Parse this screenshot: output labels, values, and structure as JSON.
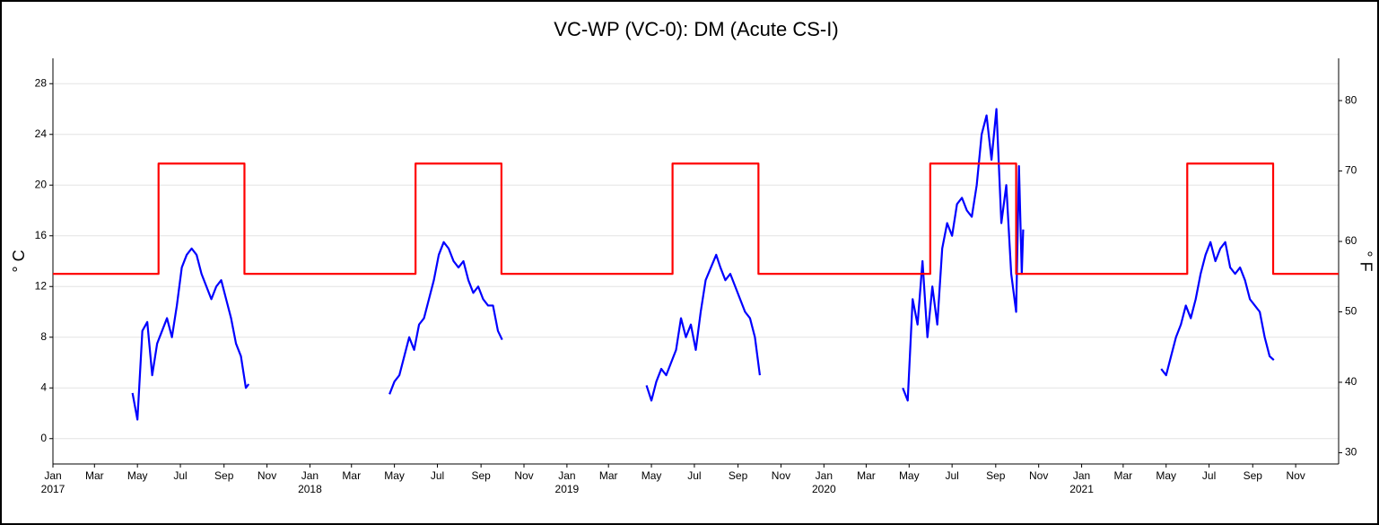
{
  "chart_data": {
    "type": "line",
    "title": "VC-WP (VC-0): DM (Acute CS-I)",
    "ylabel": "° C",
    "y2label": "° F",
    "xlim": [
      "2017-01-01",
      "2022-01-01"
    ],
    "ylim": [
      -2,
      30
    ],
    "yticks": [
      0,
      4,
      8,
      12,
      16,
      20,
      24,
      28
    ],
    "y2lim": [
      28.4,
      86
    ],
    "y2ticks": [
      30,
      40,
      50,
      60,
      70,
      80
    ],
    "grid": true,
    "xticks": [
      {
        "value": "2017-01-01",
        "label": "Jan"
      },
      {
        "value": "2017-03-01",
        "label": "Mar"
      },
      {
        "value": "2017-05-01",
        "label": "May"
      },
      {
        "value": "2017-07-01",
        "label": "Jul"
      },
      {
        "value": "2017-09-01",
        "label": "Sep"
      },
      {
        "value": "2017-11-01",
        "label": "Nov"
      },
      {
        "value": "2018-01-01",
        "label": "Jan"
      },
      {
        "value": "2018-03-01",
        "label": "Mar"
      },
      {
        "value": "2018-05-01",
        "label": "May"
      },
      {
        "value": "2018-07-01",
        "label": "Jul"
      },
      {
        "value": "2018-09-01",
        "label": "Sep"
      },
      {
        "value": "2018-11-01",
        "label": "Nov"
      },
      {
        "value": "2019-01-01",
        "label": "Jan"
      },
      {
        "value": "2019-03-01",
        "label": "Mar"
      },
      {
        "value": "2019-05-01",
        "label": "May"
      },
      {
        "value": "2019-07-01",
        "label": "Jul"
      },
      {
        "value": "2019-09-01",
        "label": "Sep"
      },
      {
        "value": "2019-11-01",
        "label": "Nov"
      },
      {
        "value": "2020-01-01",
        "label": "Jan"
      },
      {
        "value": "2020-03-01",
        "label": "Mar"
      },
      {
        "value": "2020-05-01",
        "label": "May"
      },
      {
        "value": "2020-07-01",
        "label": "Jul"
      },
      {
        "value": "2020-09-01",
        "label": "Sep"
      },
      {
        "value": "2020-11-01",
        "label": "Nov"
      },
      {
        "value": "2021-01-01",
        "label": "Jan"
      },
      {
        "value": "2021-03-01",
        "label": "Mar"
      },
      {
        "value": "2021-05-01",
        "label": "May"
      },
      {
        "value": "2021-07-01",
        "label": "Jul"
      },
      {
        "value": "2021-09-01",
        "label": "Sep"
      },
      {
        "value": "2021-11-01",
        "label": "Nov"
      }
    ],
    "year_labels": [
      {
        "value": "2017-01-01",
        "label": "2017"
      },
      {
        "value": "2018-01-01",
        "label": "2018"
      },
      {
        "value": "2019-01-01",
        "label": "2019"
      },
      {
        "value": "2020-01-01",
        "label": "2020"
      },
      {
        "value": "2021-01-01",
        "label": "2021"
      }
    ],
    "series": [
      {
        "color": "#0000ff",
        "x": [
          "2017-04-24",
          "2017-05-01",
          "2017-05-08",
          "2017-05-15",
          "2017-05-22",
          "2017-05-29",
          "2017-06-05",
          "2017-06-12",
          "2017-06-19",
          "2017-06-26",
          "2017-07-03",
          "2017-07-10",
          "2017-07-17",
          "2017-07-24",
          "2017-07-31",
          "2017-08-07",
          "2017-08-14",
          "2017-08-21",
          "2017-08-28",
          "2017-09-04",
          "2017-09-11",
          "2017-09-18",
          "2017-09-25",
          "2017-10-02",
          "2017-10-06",
          "2018-01-01",
          "2018-04-24",
          "2018-05-01",
          "2018-05-08",
          "2018-05-15",
          "2018-05-22",
          "2018-05-29",
          "2018-06-05",
          "2018-06-12",
          "2018-06-19",
          "2018-06-26",
          "2018-07-03",
          "2018-07-10",
          "2018-07-17",
          "2018-07-24",
          "2018-07-31",
          "2018-08-07",
          "2018-08-14",
          "2018-08-21",
          "2018-08-28",
          "2018-09-04",
          "2018-09-11",
          "2018-09-18",
          "2018-09-25",
          "2018-10-01",
          "2019-01-01",
          "2019-04-24",
          "2019-05-01",
          "2019-05-08",
          "2019-05-15",
          "2019-05-22",
          "2019-05-29",
          "2019-06-05",
          "2019-06-12",
          "2019-06-19",
          "2019-06-26",
          "2019-07-03",
          "2019-07-10",
          "2019-07-17",
          "2019-08-01",
          "2019-08-07",
          "2019-08-14",
          "2019-08-21",
          "2019-08-28",
          "2019-09-04",
          "2019-09-11",
          "2019-09-18",
          "2019-09-25",
          "2019-10-02",
          "2020-01-01",
          "2020-04-22",
          "2020-04-29",
          "2020-05-06",
          "2020-05-13",
          "2020-05-20",
          "2020-05-27",
          "2020-06-03",
          "2020-06-10",
          "2020-06-17",
          "2020-06-24",
          "2020-07-01",
          "2020-07-08",
          "2020-07-15",
          "2020-07-22",
          "2020-07-29",
          "2020-08-05",
          "2020-08-12",
          "2020-08-19",
          "2020-08-26",
          "2020-09-02",
          "2020-09-09",
          "2020-09-16",
          "2020-09-23",
          "2020-09-30",
          "2020-10-04",
          "2020-10-08",
          "2020-10-10",
          "2021-01-01",
          "2021-04-24",
          "2021-05-01",
          "2021-05-08",
          "2021-05-15",
          "2021-05-22",
          "2021-05-29",
          "2021-06-05",
          "2021-06-12",
          "2021-06-19",
          "2021-06-26",
          "2021-07-03",
          "2021-07-10",
          "2021-07-17",
          "2021-07-24",
          "2021-07-31",
          "2021-08-07",
          "2021-08-14",
          "2021-08-21",
          "2021-08-28",
          "2021-09-04",
          "2021-09-11",
          "2021-09-18",
          "2021-09-25",
          "2021-10-01"
        ],
        "values": [
          3.6,
          1.5,
          8.5,
          9.2,
          5,
          7.5,
          8.5,
          9.5,
          8,
          10.5,
          13.5,
          14.5,
          15,
          14.5,
          13,
          12,
          11,
          12,
          12.5,
          11,
          9.5,
          7.5,
          6.5,
          4,
          4.3,
          null,
          3.5,
          4.5,
          5,
          6.5,
          8,
          7,
          9,
          9.5,
          11,
          12.5,
          14.5,
          15.5,
          15,
          14,
          13.5,
          14,
          12.5,
          11.5,
          12,
          11,
          10.5,
          10.5,
          8.5,
          7.8,
          null,
          4.2,
          3,
          4.5,
          5.5,
          5,
          6,
          7,
          9.5,
          8,
          9,
          7,
          10,
          12.5,
          14.5,
          13.5,
          12.5,
          13,
          12,
          11,
          10,
          9.5,
          8,
          5,
          null,
          4,
          3,
          11,
          9,
          14,
          8,
          12,
          9,
          15,
          17,
          16,
          18.5,
          19,
          18,
          17.5,
          20,
          24,
          25.5,
          22,
          26,
          17,
          20,
          13,
          10,
          21.5,
          13,
          16.5,
          null,
          5.5,
          5,
          6.5,
          8,
          9,
          10.5,
          9.5,
          11,
          13,
          14.5,
          15.5,
          14,
          15,
          15.5,
          13.5,
          13,
          13.5,
          12.5,
          11,
          10.5,
          10,
          8,
          6.5,
          6.2
        ]
      },
      {
        "color": "#ff0000",
        "x": [
          "2017-01-01",
          "2017-05-31",
          "2017-05-31",
          "2017-09-30",
          "2017-09-30",
          "2018-05-31",
          "2018-05-31",
          "2018-09-30",
          "2018-09-30",
          "2019-05-31",
          "2019-05-31",
          "2019-09-30",
          "2019-09-30",
          "2020-05-31",
          "2020-05-31",
          "2020-09-30",
          "2020-09-30",
          "2021-05-31",
          "2021-05-31",
          "2021-09-30",
          "2021-09-30",
          "2022-01-01"
        ],
        "values": [
          13,
          13,
          21.7,
          21.7,
          13,
          13,
          21.7,
          21.7,
          13,
          13,
          21.7,
          21.7,
          13,
          13,
          21.7,
          21.7,
          13,
          13,
          21.7,
          21.7,
          13,
          13
        ]
      }
    ]
  }
}
